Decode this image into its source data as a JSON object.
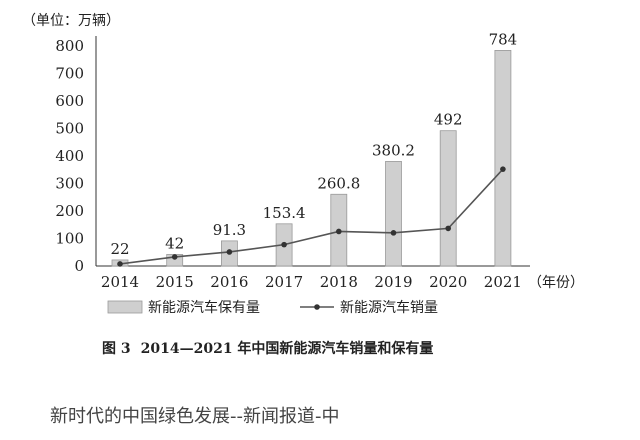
{
  "chart_data": {
    "type": "bar",
    "unit_label": "（单位：万辆）",
    "categories": [
      "2014",
      "2015",
      "2016",
      "2017",
      "2018",
      "2019",
      "2020",
      "2021"
    ],
    "x_unit_label": "（年份）",
    "ylim": [
      0,
      800
    ],
    "yticks": [
      "0",
      "100",
      "200",
      "300",
      "400",
      "500",
      "600",
      "700",
      "800"
    ],
    "grid": false,
    "legend_position": "bottom",
    "series": [
      {
        "name": "新能源汽车保有量",
        "kind": "bar",
        "color": "#cfcfcf",
        "values": [
          22,
          42,
          91.3,
          153.4,
          260.8,
          380.2,
          492,
          784
        ],
        "labels": [
          "22",
          "42",
          "91.3",
          "153.4",
          "260.8",
          "380.2",
          "492",
          "784"
        ]
      },
      {
        "name": "新能源汽车销量",
        "kind": "line",
        "color": "#555555",
        "values": [
          7.5,
          33,
          51,
          77.7,
          125.6,
          120.6,
          136.7,
          352.1
        ]
      }
    ]
  },
  "caption": {
    "fig_no": "图 3",
    "text": "2014—2021 年中国新能源汽车销量和保有量"
  },
  "footer_text": "新时代的中国绿色发展--新闻报道-中"
}
